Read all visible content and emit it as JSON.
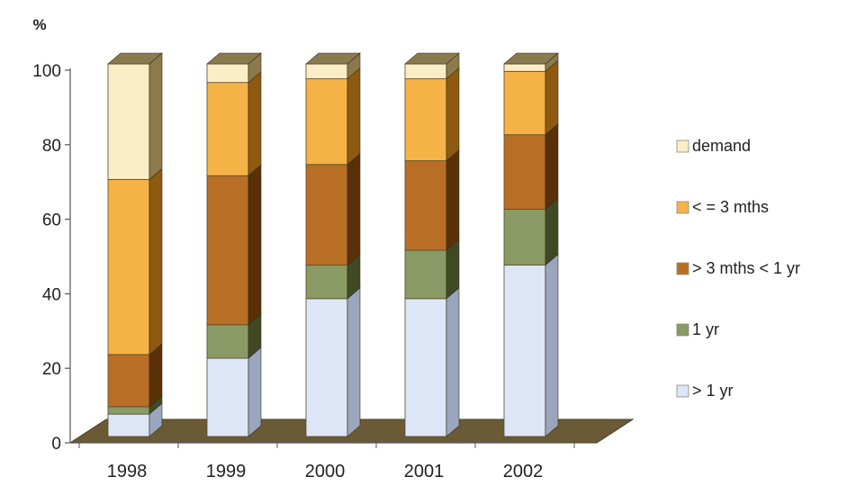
{
  "chart_data": {
    "type": "bar",
    "stacked": true,
    "three_d": true,
    "ylabel": "%",
    "ylim": [
      0,
      100
    ],
    "yticks": [
      "0",
      "20",
      "40",
      "60",
      "80",
      "100"
    ],
    "categories": [
      "1998",
      "1999",
      "2000",
      "2001",
      "2002"
    ],
    "series": [
      {
        "name": "> 1 yr",
        "color": "#dde6f7",
        "side": "#9aa6bd",
        "values": [
          6,
          21,
          37,
          37,
          46
        ]
      },
      {
        "name": "1 yr",
        "color": "#8a9a64",
        "side": "#3f4a24",
        "values": [
          2,
          9,
          9,
          13,
          15
        ]
      },
      {
        "name": "> 3 mths < 1 yr",
        "color": "#b86f25",
        "side": "#5a3008",
        "values": [
          14,
          40,
          27,
          24,
          20
        ]
      },
      {
        "name": "< = 3 mths",
        "color": "#f5b347",
        "side": "#8e5a10",
        "values": [
          47,
          25,
          23,
          22,
          17
        ]
      },
      {
        "name": "demand",
        "color": "#fbedc6",
        "side": "#8d7a4c",
        "values": [
          31,
          5,
          4,
          4,
          2
        ]
      }
    ],
    "legend_order": [
      "demand",
      "< = 3 mths",
      "> 3 mths < 1 yr",
      "1 yr",
      "> 1 yr"
    ],
    "legend_position": "right",
    "floor_color": "#6b5a36",
    "grid": false
  }
}
